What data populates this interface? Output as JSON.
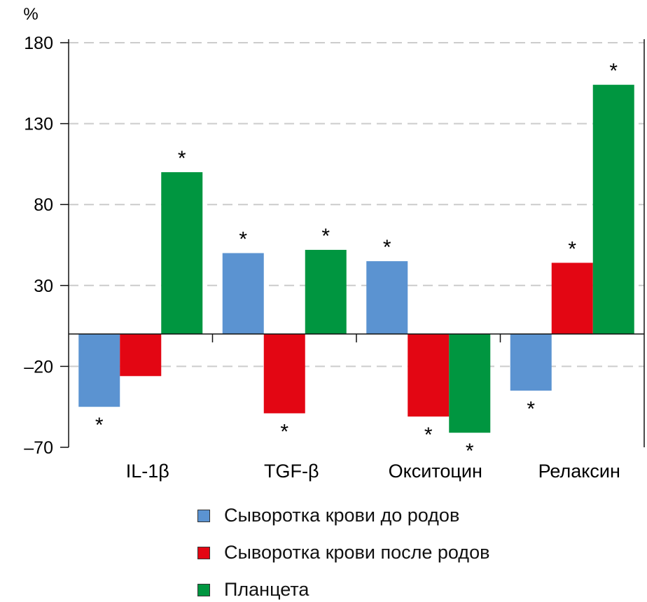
{
  "chart_data": {
    "type": "bar",
    "ylabel": "%",
    "ylim": [
      -70,
      180
    ],
    "yticks": [
      180,
      130,
      80,
      30,
      -20,
      -70
    ],
    "ytick_labels": [
      "180",
      "130",
      "80",
      "30",
      "–20",
      "–70"
    ],
    "grid": true,
    "categories": [
      "IL-1β",
      "TGF-β",
      "Окситоцин",
      "Релаксин"
    ],
    "series": [
      {
        "name": "Сыворотка крови до родов",
        "color": "#5b93d1",
        "values": [
          -45,
          50,
          45,
          -35
        ],
        "significant": [
          true,
          true,
          true,
          true
        ]
      },
      {
        "name": "Сыворотка крови после родов",
        "color": "#e30613",
        "values": [
          -26,
          -49,
          -51,
          44
        ],
        "significant": [
          false,
          true,
          true,
          true
        ]
      },
      {
        "name": "Планцета",
        "color": "#009640",
        "values": [
          100,
          52,
          -61,
          154
        ],
        "significant": [
          true,
          true,
          true,
          true
        ]
      }
    ],
    "significance_marker": "*",
    "legend_position": "bottom"
  }
}
